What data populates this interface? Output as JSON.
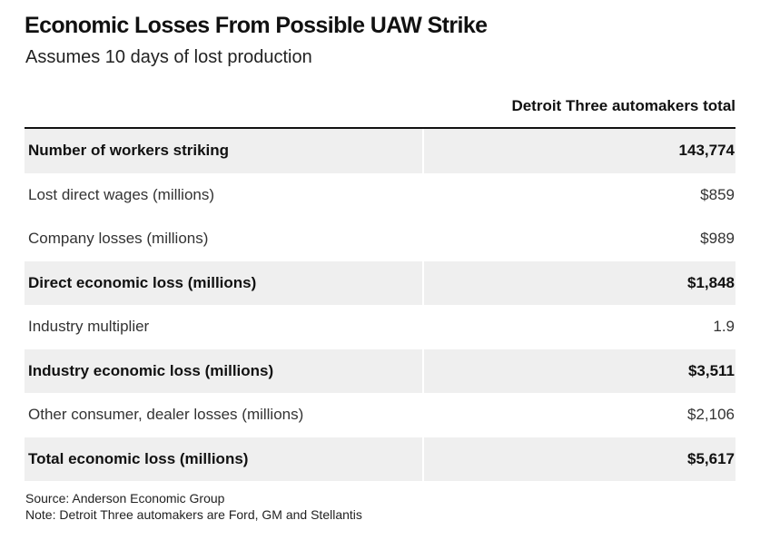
{
  "chart_data": {
    "type": "table",
    "title": "Economic Losses From Possible UAW Strike",
    "subtitle": "Assumes 10 days of lost production",
    "columns": [
      "",
      "Detroit Three automakers total"
    ],
    "rows": [
      {
        "label": "Number of workers striking",
        "value": "143,774",
        "bold": true,
        "shaded": true
      },
      {
        "label": "Lost direct wages (millions)",
        "value": "$859",
        "bold": false,
        "shaded": false
      },
      {
        "label": "Company losses (millions)",
        "value": "$989",
        "bold": false,
        "shaded": false
      },
      {
        "label": "Direct economic loss (millions)",
        "value": "$1,848",
        "bold": true,
        "shaded": true
      },
      {
        "label": "Industry multiplier",
        "value": "1.9",
        "bold": false,
        "shaded": false
      },
      {
        "label": "Industry economic loss (millions)",
        "value": "$3,511",
        "bold": true,
        "shaded": true
      },
      {
        "label": "Other consumer, dealer losses (millions)",
        "value": "$2,106",
        "bold": false,
        "shaded": false
      },
      {
        "label": "Total economic loss (millions)",
        "value": "$5,617",
        "bold": true,
        "shaded": true
      }
    ],
    "source": "Source: Anderson Economic Group",
    "note": "Note: Detroit Three automakers are Ford, GM and Stellantis"
  }
}
